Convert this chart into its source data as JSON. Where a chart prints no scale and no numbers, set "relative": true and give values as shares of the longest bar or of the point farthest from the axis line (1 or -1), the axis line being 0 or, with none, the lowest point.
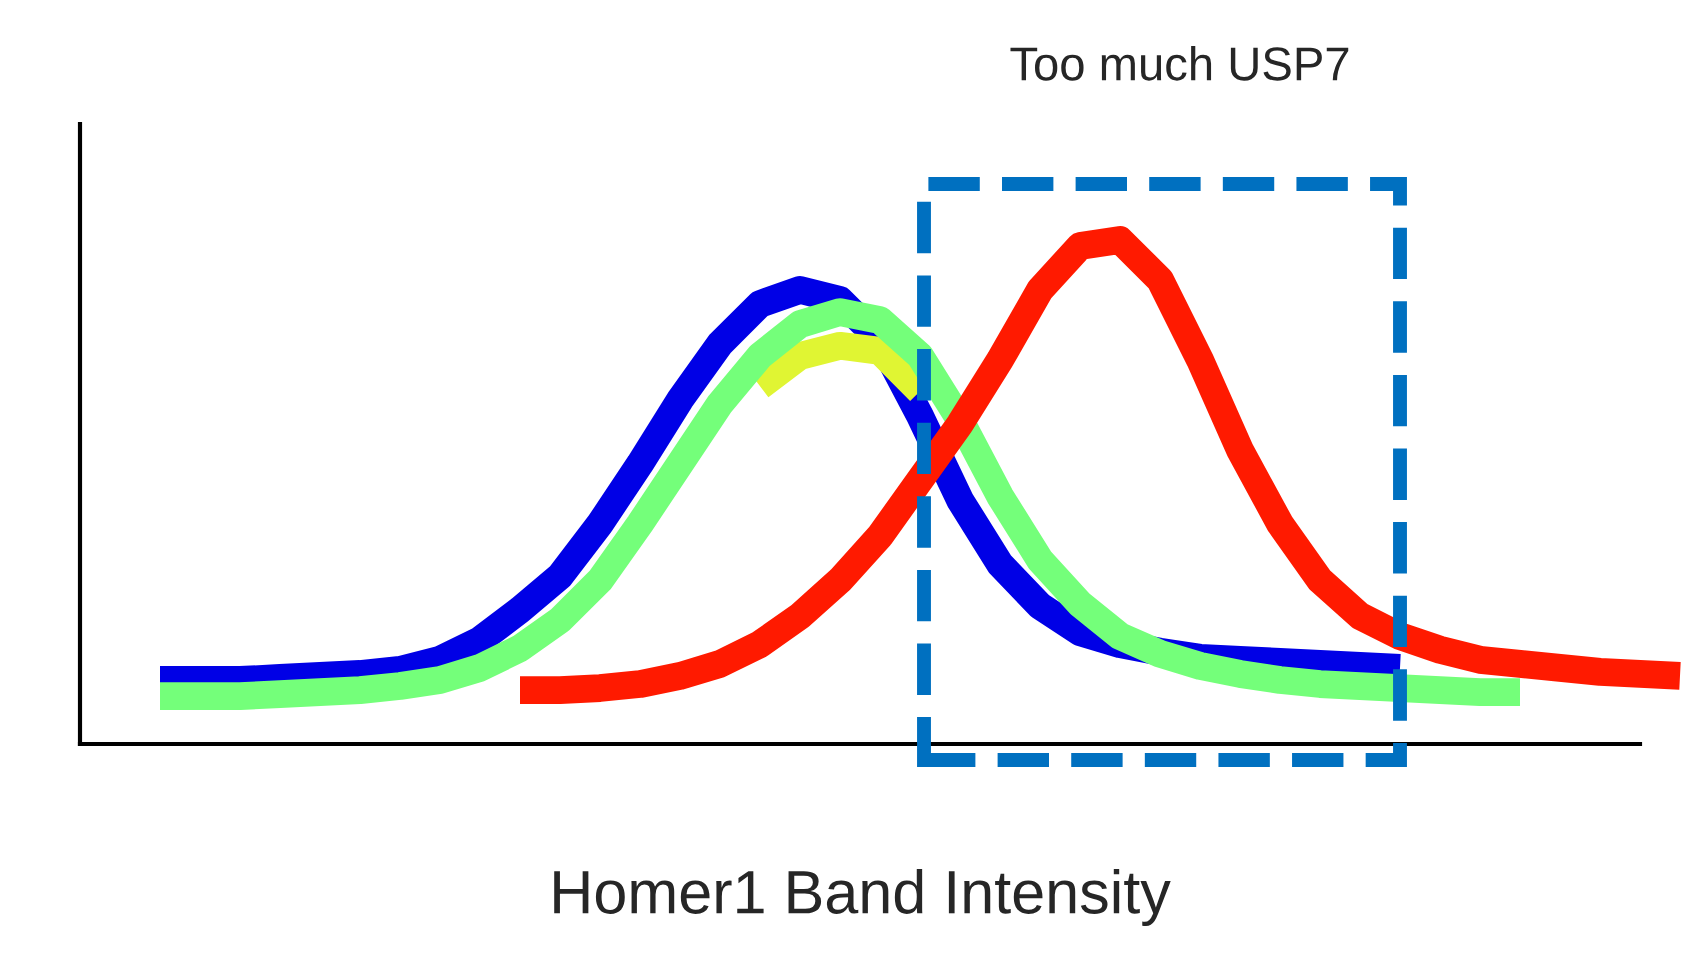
{
  "chart_data": {
    "type": "line",
    "relative": true,
    "xlabel": "Homer1 Band Intensity",
    "legend": false,
    "marker": "none",
    "line_style": "solid",
    "categories": [
      null,
      null,
      null,
      null,
      null,
      null,
      null,
      null,
      null,
      null,
      null,
      null,
      null,
      null,
      null,
      null,
      null,
      null,
      null,
      null,
      null,
      null,
      null,
      null,
      null,
      null,
      null,
      null,
      null,
      null,
      null,
      null,
      null,
      null,
      null,
      null,
      null,
      null,
      null
    ],
    "series": [
      {
        "color": "#0000e6",
        "values": [
          0.127,
          0.127,
          0.127,
          0.131,
          0.135,
          0.139,
          0.147,
          0.167,
          0.206,
          0.266,
          0.333,
          0.437,
          0.556,
          0.683,
          0.794,
          0.873,
          0.901,
          0.881,
          0.802,
          0.651,
          0.484,
          0.357,
          0.274,
          0.222,
          0.198,
          0.183,
          0.171,
          0.167,
          0.163,
          0.159,
          0.155,
          0.151,
          null,
          null,
          null,
          null,
          null,
          null,
          null
        ]
      },
      {
        "color": "#e0f533",
        "values": [
          null,
          null,
          null,
          null,
          null,
          null,
          null,
          null,
          null,
          null,
          null,
          null,
          null,
          null,
          null,
          0.71,
          0.77,
          0.79,
          0.78,
          0.7,
          null,
          null,
          null,
          null,
          null,
          null,
          null,
          null,
          null,
          null,
          null,
          null,
          null,
          null,
          null,
          null,
          null,
          null,
          null
        ]
      },
      {
        "color": "#74ff7a",
        "values": [
          0.095,
          0.095,
          0.095,
          0.099,
          0.103,
          0.107,
          0.115,
          0.127,
          0.151,
          0.19,
          0.246,
          0.325,
          0.437,
          0.556,
          0.675,
          0.77,
          0.833,
          0.857,
          0.841,
          0.77,
          0.643,
          0.492,
          0.365,
          0.278,
          0.214,
          0.179,
          0.155,
          0.139,
          0.127,
          0.119,
          0.115,
          0.111,
          0.107,
          0.103,
          0.103,
          null,
          null,
          null,
          null
        ]
      },
      {
        "color": "#ff1a00",
        "values": [
          null,
          null,
          null,
          null,
          null,
          null,
          null,
          null,
          null,
          0.107,
          0.107,
          0.111,
          0.119,
          0.135,
          0.159,
          0.198,
          0.254,
          0.325,
          0.413,
          0.524,
          0.635,
          0.762,
          0.901,
          0.988,
          1.0,
          0.921,
          0.762,
          0.583,
          0.437,
          0.325,
          0.254,
          0.214,
          0.187,
          0.167,
          0.159,
          0.151,
          0.143,
          0.139,
          0.135
        ]
      }
    ],
    "annotations": [
      "Too much USP7"
    ]
  }
}
